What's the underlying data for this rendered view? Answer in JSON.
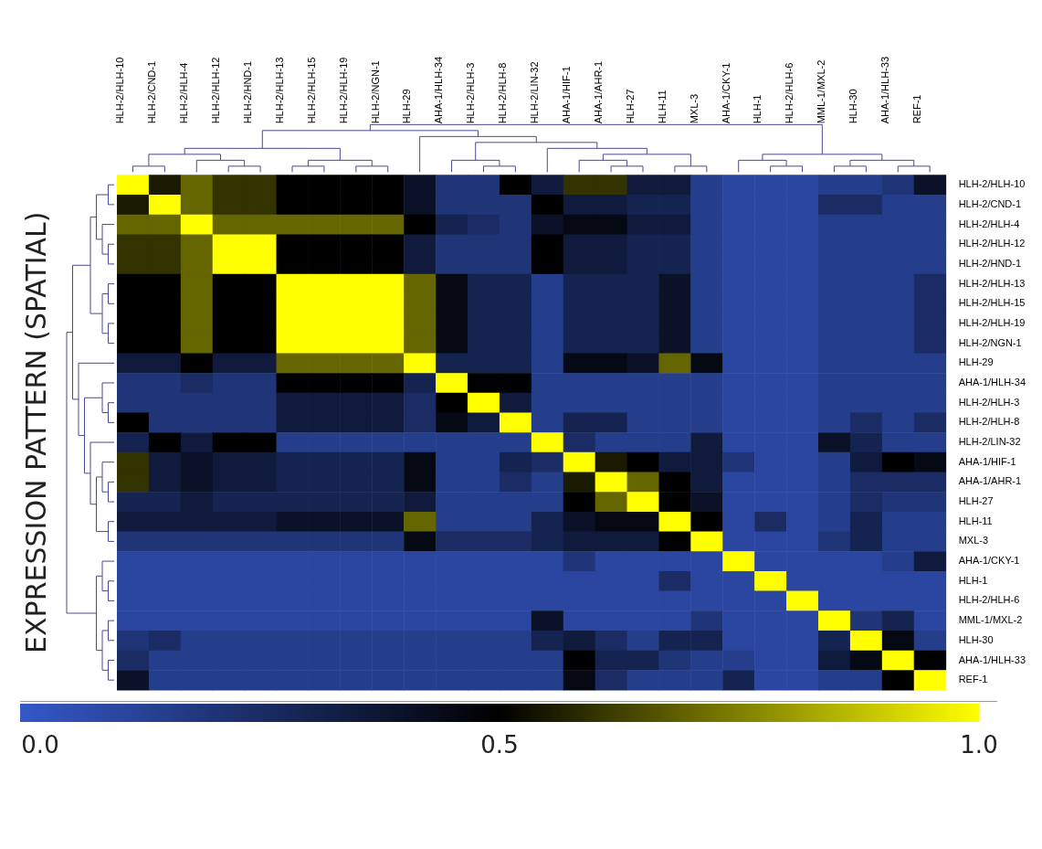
{
  "chart_data": {
    "type": "heatmap",
    "ylabel": "EXPRESSION PATTERN (SPATIAL)",
    "categories": [
      "HLH-2/HLH-10",
      "HLH-2/CND-1",
      "HLH-2/HLH-4",
      "HLH-2/HLH-12",
      "HLH-2/HND-1",
      "HLH-2/HLH-13",
      "HLH-2/HLH-15",
      "HLH-2/HLH-19",
      "HLH-2/NGN-1",
      "HLH-29",
      "AHA-1/HLH-34",
      "HLH-2/HLH-3",
      "HLH-2/HLH-8",
      "HLH-2/LIN-32",
      "AHA-1/HIF-1",
      "AHA-1/AHR-1",
      "HLH-27",
      "HLH-11",
      "MXL-3",
      "AHA-1/CKY-1",
      "HLH-1",
      "HLH-2/HLH-6",
      "MML-1/MXL-2",
      "HLH-30",
      "AHA-1/HLH-33",
      "REF-1"
    ],
    "y_categories": [
      "HLH-2/HLH-10",
      "HLH-2/CND-1",
      "HLH-2/HLH-4",
      "HLH-2/HLH-12",
      "HLH-2/HND-1",
      "HLH-2/HLH-13",
      "HLH-2/HLH-15",
      "HLH-2/HLH-19",
      "HLH-2/NGN-1",
      "HLH-29",
      "AHA-1/HLH-34",
      "HLH-2/HLH-3",
      "HLH-2/HLH-8",
      "HLH-2/LIN-32",
      "AHA-1/HIF-1",
      "AHA-1/AHR-1",
      "HLH-27",
      "HLH-11",
      "MXL-3",
      "AHA-1/CKY-1",
      "HLH-1",
      "HLH-2/HLH-6",
      "MML-1/MXL-2",
      "HLH-30",
      "AHA-1/HLH-33",
      "REF-1"
    ],
    "cells": [
      [
        1,
        0.55,
        0.7,
        0.6,
        0.6,
        0.5,
        0.5,
        0.5,
        0.5,
        0.4,
        0.2,
        0.2,
        0.5,
        0.35,
        0.6,
        0.6,
        0.35,
        0.35,
        0.15,
        0.1,
        0.1,
        0.1,
        0.15,
        0.15,
        0.2,
        0.4
      ],
      [
        0.55,
        1,
        0.7,
        0.6,
        0.6,
        0.5,
        0.5,
        0.5,
        0.5,
        0.4,
        0.2,
        0.2,
        0.2,
        0.5,
        0.35,
        0.35,
        0.3,
        0.3,
        0.15,
        0.1,
        0.1,
        0.1,
        0.25,
        0.25,
        0.15,
        0.15
      ],
      [
        0.7,
        0.7,
        1,
        0.7,
        0.7,
        0.7,
        0.7,
        0.7,
        0.7,
        0.5,
        0.3,
        0.25,
        0.2,
        0.4,
        0.45,
        0.45,
        0.35,
        0.35,
        0.15,
        0.1,
        0.1,
        0.1,
        0.15,
        0.15,
        0.15,
        0.15
      ],
      [
        0.6,
        0.6,
        0.7,
        1,
        1,
        0.5,
        0.5,
        0.5,
        0.5,
        0.35,
        0.2,
        0.2,
        0.2,
        0.5,
        0.35,
        0.35,
        0.3,
        0.3,
        0.15,
        0.1,
        0.1,
        0.1,
        0.15,
        0.15,
        0.15,
        0.15
      ],
      [
        0.6,
        0.6,
        0.7,
        1,
        1,
        0.5,
        0.5,
        0.5,
        0.5,
        0.35,
        0.2,
        0.2,
        0.2,
        0.5,
        0.35,
        0.35,
        0.3,
        0.3,
        0.15,
        0.1,
        0.1,
        0.1,
        0.15,
        0.15,
        0.15,
        0.15
      ],
      [
        0.5,
        0.5,
        0.7,
        0.5,
        0.5,
        1,
        1,
        1,
        1,
        0.7,
        0.45,
        0.3,
        0.3,
        0.15,
        0.3,
        0.3,
        0.3,
        0.4,
        0.15,
        0.1,
        0.1,
        0.1,
        0.15,
        0.15,
        0.15,
        0.25
      ],
      [
        0.5,
        0.5,
        0.7,
        0.5,
        0.5,
        1,
        1,
        1,
        1,
        0.7,
        0.45,
        0.3,
        0.3,
        0.15,
        0.3,
        0.3,
        0.3,
        0.4,
        0.15,
        0.1,
        0.1,
        0.1,
        0.15,
        0.15,
        0.15,
        0.25
      ],
      [
        0.5,
        0.5,
        0.7,
        0.5,
        0.5,
        1,
        1,
        1,
        1,
        0.7,
        0.45,
        0.3,
        0.3,
        0.15,
        0.3,
        0.3,
        0.3,
        0.4,
        0.15,
        0.1,
        0.1,
        0.1,
        0.15,
        0.15,
        0.15,
        0.25
      ],
      [
        0.5,
        0.5,
        0.7,
        0.5,
        0.5,
        1,
        1,
        1,
        1,
        0.7,
        0.45,
        0.3,
        0.3,
        0.15,
        0.3,
        0.3,
        0.3,
        0.4,
        0.15,
        0.1,
        0.1,
        0.1,
        0.15,
        0.15,
        0.15,
        0.25
      ],
      [
        0.35,
        0.35,
        0.5,
        0.35,
        0.35,
        0.7,
        0.7,
        0.7,
        0.7,
        1,
        0.3,
        0.3,
        0.3,
        0.15,
        0.45,
        0.45,
        0.4,
        0.7,
        0.45,
        0.1,
        0.1,
        0.1,
        0.15,
        0.15,
        0.15,
        0.15
      ],
      [
        0.2,
        0.2,
        0.25,
        0.2,
        0.2,
        0.5,
        0.5,
        0.5,
        0.5,
        0.3,
        1,
        0.5,
        0.5,
        0.15,
        0.15,
        0.15,
        0.15,
        0.15,
        0.15,
        0.1,
        0.1,
        0.1,
        0.15,
        0.15,
        0.15,
        0.15
      ],
      [
        0.2,
        0.2,
        0.2,
        0.2,
        0.2,
        0.35,
        0.35,
        0.35,
        0.35,
        0.25,
        0.5,
        1,
        0.35,
        0.15,
        0.15,
        0.15,
        0.15,
        0.15,
        0.15,
        0.1,
        0.1,
        0.1,
        0.15,
        0.15,
        0.15,
        0.15
      ],
      [
        0.5,
        0.2,
        0.2,
        0.2,
        0.2,
        0.35,
        0.35,
        0.35,
        0.35,
        0.25,
        0.45,
        0.35,
        1,
        0.15,
        0.3,
        0.3,
        0.15,
        0.15,
        0.15,
        0.1,
        0.1,
        0.1,
        0.15,
        0.25,
        0.15,
        0.25
      ],
      [
        0.3,
        0.5,
        0.35,
        0.5,
        0.5,
        0.15,
        0.15,
        0.15,
        0.15,
        0.15,
        0.15,
        0.15,
        0.15,
        1,
        0.25,
        0.15,
        0.15,
        0.15,
        0.35,
        0.1,
        0.1,
        0.1,
        0.4,
        0.3,
        0.15,
        0.15
      ],
      [
        0.6,
        0.35,
        0.4,
        0.35,
        0.35,
        0.3,
        0.3,
        0.3,
        0.3,
        0.45,
        0.15,
        0.15,
        0.3,
        0.25,
        1,
        0.55,
        0.5,
        0.35,
        0.35,
        0.2,
        0.1,
        0.1,
        0.15,
        0.35,
        0.5,
        0.45
      ],
      [
        0.6,
        0.35,
        0.4,
        0.35,
        0.35,
        0.3,
        0.3,
        0.3,
        0.3,
        0.45,
        0.15,
        0.15,
        0.25,
        0.15,
        0.55,
        1,
        0.7,
        0.5,
        0.35,
        0.1,
        0.1,
        0.1,
        0.15,
        0.25,
        0.25,
        0.25
      ],
      [
        0.3,
        0.3,
        0.35,
        0.3,
        0.3,
        0.3,
        0.3,
        0.3,
        0.3,
        0.35,
        0.15,
        0.15,
        0.15,
        0.15,
        0.5,
        0.7,
        1,
        0.5,
        0.4,
        0.1,
        0.1,
        0.1,
        0.15,
        0.25,
        0.2,
        0.2
      ],
      [
        0.35,
        0.35,
        0.35,
        0.35,
        0.35,
        0.4,
        0.4,
        0.4,
        0.4,
        0.7,
        0.15,
        0.15,
        0.15,
        0.3,
        0.4,
        0.45,
        0.45,
        1,
        0.5,
        0.1,
        0.25,
        0.1,
        0.15,
        0.3,
        0.15,
        0.15
      ],
      [
        0.2,
        0.2,
        0.2,
        0.2,
        0.2,
        0.2,
        0.2,
        0.2,
        0.2,
        0.45,
        0.25,
        0.25,
        0.25,
        0.3,
        0.35,
        0.35,
        0.35,
        0.5,
        1,
        0.1,
        0.1,
        0.1,
        0.2,
        0.3,
        0.15,
        0.15
      ],
      [
        0.1,
        0.1,
        0.1,
        0.1,
        0.1,
        0.1,
        0.1,
        0.1,
        0.1,
        0.1,
        0.1,
        0.1,
        0.1,
        0.1,
        0.2,
        0.1,
        0.1,
        0.1,
        0.1,
        1,
        0.1,
        0.1,
        0.1,
        0.1,
        0.15,
        0.35
      ],
      [
        0.1,
        0.1,
        0.1,
        0.1,
        0.1,
        0.1,
        0.1,
        0.1,
        0.1,
        0.1,
        0.1,
        0.1,
        0.1,
        0.1,
        0.1,
        0.1,
        0.1,
        0.25,
        0.1,
        0.1,
        1,
        0.1,
        0.1,
        0.1,
        0.1,
        0.1
      ],
      [
        0.1,
        0.1,
        0.1,
        0.1,
        0.1,
        0.1,
        0.1,
        0.1,
        0.1,
        0.1,
        0.1,
        0.1,
        0.1,
        0.1,
        0.1,
        0.1,
        0.1,
        0.1,
        0.1,
        0.1,
        0.1,
        1,
        0.1,
        0.1,
        0.1,
        0.1
      ],
      [
        0.1,
        0.1,
        0.1,
        0.1,
        0.1,
        0.1,
        0.1,
        0.1,
        0.1,
        0.1,
        0.1,
        0.1,
        0.1,
        0.4,
        0.1,
        0.1,
        0.1,
        0.1,
        0.2,
        0.1,
        0.1,
        0.1,
        1,
        0.2,
        0.3,
        0.1
      ],
      [
        0.2,
        0.25,
        0.15,
        0.15,
        0.15,
        0.15,
        0.15,
        0.15,
        0.15,
        0.15,
        0.15,
        0.15,
        0.15,
        0.3,
        0.35,
        0.25,
        0.15,
        0.3,
        0.3,
        0.1,
        0.1,
        0.1,
        0.3,
        1,
        0.45,
        0.15
      ],
      [
        0.25,
        0.15,
        0.15,
        0.15,
        0.15,
        0.15,
        0.15,
        0.15,
        0.15,
        0.15,
        0.15,
        0.15,
        0.15,
        0.15,
        0.5,
        0.3,
        0.3,
        0.2,
        0.15,
        0.15,
        0.1,
        0.1,
        0.35,
        0.45,
        1,
        0.5
      ],
      [
        0.4,
        0.15,
        0.15,
        0.15,
        0.15,
        0.15,
        0.15,
        0.15,
        0.15,
        0.15,
        0.15,
        0.15,
        0.15,
        0.15,
        0.45,
        0.25,
        0.15,
        0.15,
        0.15,
        0.3,
        0.1,
        0.1,
        0.15,
        0.15,
        0.5,
        1
      ]
    ],
    "clim": [
      0,
      1
    ],
    "cticks": [
      {
        "value": 0,
        "label": "0.0"
      },
      {
        "value": 0.5,
        "label": "0.5"
      },
      {
        "value": 1,
        "label": "1.0"
      }
    ]
  }
}
